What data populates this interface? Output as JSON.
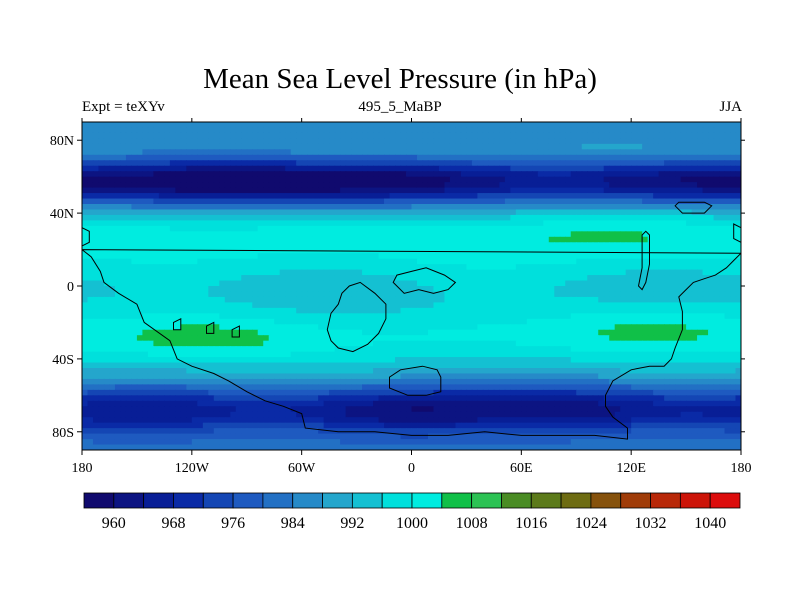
{
  "title": "Mean Sea Level Pressure (in hPa)",
  "left_string": "Expt = teXYv",
  "center_string": "495_5_MaBP",
  "right_string": "JJA",
  "map": {
    "projection": "cylindrical-equidistant",
    "lon_range": [
      -180,
      180
    ],
    "lat_range": [
      -90,
      90
    ],
    "lon_ticks": [
      {
        "value": -180,
        "label": "180"
      },
      {
        "value": -120,
        "label": "120W"
      },
      {
        "value": -60,
        "label": "60W"
      },
      {
        "value": 0,
        "label": "0"
      },
      {
        "value": 60,
        "label": "60E"
      },
      {
        "value": 120,
        "label": "120E"
      },
      {
        "value": 180,
        "label": "180"
      }
    ],
    "lat_ticks": [
      {
        "value": 80,
        "label": "80N"
      },
      {
        "value": 40,
        "label": "40N"
      },
      {
        "value": 0,
        "label": "0"
      },
      {
        "value": -40,
        "label": "40S"
      },
      {
        "value": -80,
        "label": "80S"
      }
    ]
  },
  "colorbar": {
    "levels": [
      "960",
      "968",
      "976",
      "984",
      "992",
      "1000",
      "1008",
      "1016",
      "1024",
      "1032",
      "1040"
    ],
    "level_values": [
      960,
      964,
      968,
      972,
      976,
      980,
      984,
      988,
      992,
      996,
      1000,
      1004,
      1008,
      1012,
      1016,
      1020,
      1024,
      1028,
      1032,
      1036,
      1040
    ],
    "colors": [
      "#100a6e",
      "#0c1482",
      "#081e96",
      "#0a2aa6",
      "#1446b4",
      "#1e5ac0",
      "#2270c4",
      "#268ac8",
      "#24a6cc",
      "#14c0d2",
      "#00e0dc",
      "#00ece0",
      "#10c048",
      "#2cc254",
      "#4a8c24",
      "#5c7a1a",
      "#6e6c12",
      "#86520c",
      "#a03c08",
      "#b82808",
      "#cc1408",
      "#dc0c0c"
    ]
  },
  "field": {
    "description_units": "hPa",
    "lows": [
      {
        "lon": -100,
        "lat": 58,
        "value": 962
      },
      {
        "lon": -20,
        "lat": 58,
        "value": 965
      },
      {
        "lon": 150,
        "lat": 58,
        "value": 972
      },
      {
        "lon": -10,
        "lat": -70,
        "value": 966
      },
      {
        "lon": 90,
        "lat": -68,
        "value": 970
      },
      {
        "lon": -150,
        "lat": -72,
        "value": 980
      }
    ],
    "highs": [
      {
        "lon": -110,
        "lat": -30,
        "value": 1006
      },
      {
        "lon": 130,
        "lat": -22,
        "value": 1006
      },
      {
        "lon": 110,
        "lat": 30,
        "value": 1003
      },
      {
        "lon": 30,
        "lat": 10,
        "value": 1001
      }
    ]
  },
  "outline_color": "#000000"
}
